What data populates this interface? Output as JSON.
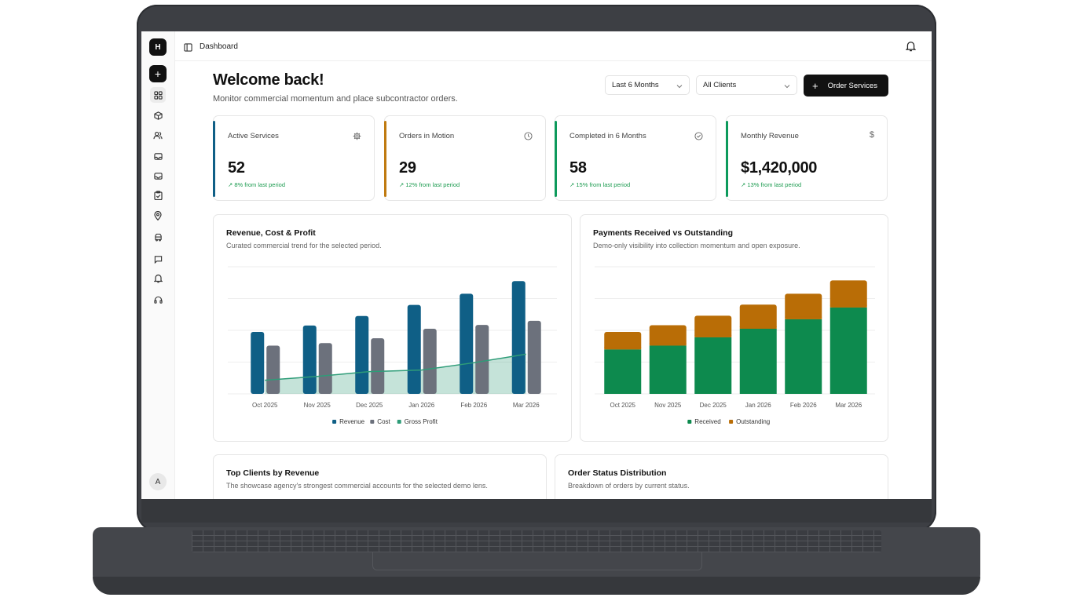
{
  "sidebar": {
    "logo": "H",
    "add": "+",
    "avatar": "A",
    "icons": [
      "grid-icon",
      "box-icon",
      "users-icon",
      "inbox-icon",
      "inbox-alt-icon",
      "clipboard-check-icon",
      "map-pin-icon",
      "truck-icon",
      "message-icon",
      "bell-icon",
      "headset-icon"
    ]
  },
  "topbar": {
    "title": "Dashboard"
  },
  "header": {
    "title": "Welcome back!",
    "subtitle": "Monitor commercial momentum and place subcontractor orders.",
    "period_select": "Last 6 Months",
    "client_select": "All Clients",
    "order_button": "Order Services"
  },
  "kpis": [
    {
      "label": "Active Services",
      "value": "52",
      "trend": "8% from last period",
      "color": "#0f5f86",
      "icon": "gear-icon"
    },
    {
      "label": "Orders in Motion",
      "value": "29",
      "trend": "12% from last period",
      "color": "#c07a10",
      "icon": "clock-icon"
    },
    {
      "label": "Completed in 6 Months",
      "value": "58",
      "trend": "15% from last period",
      "color": "#0d9a5c",
      "icon": "check-circle-icon"
    },
    {
      "label": "Monthly Revenue",
      "value": "$1,420,000",
      "trend": "13% from last period",
      "color": "#0d9a5c",
      "icon": "dollar-icon"
    }
  ],
  "revenue_card": {
    "title": "Revenue, Cost & Profit",
    "subtitle": "Curated commercial trend for the selected period."
  },
  "payments_card": {
    "title": "Payments Received vs Outstanding",
    "subtitle": "Demo-only visibility into collection momentum and open exposure."
  },
  "clients_card": {
    "title": "Top Clients by Revenue",
    "subtitle": "The showcase agency's strongest commercial accounts for the selected demo lens."
  },
  "status_card": {
    "title": "Order Status Distribution",
    "subtitle": "Breakdown of orders by current status."
  },
  "chart_data": [
    {
      "type": "bar",
      "title": "Revenue, Cost & Profit",
      "categories": [
        "Oct 2025",
        "Nov 2025",
        "Dec 2025",
        "Jan 2026",
        "Feb 2026",
        "Mar 2026"
      ],
      "ylim": [
        0,
        4
      ],
      "grid": true,
      "legend": "bottom",
      "series": [
        {
          "name": "Revenue",
          "kind": "bar",
          "color": "#0f5f86",
          "values": [
            1.95,
            2.15,
            2.45,
            2.8,
            3.15,
            3.55
          ]
        },
        {
          "name": "Cost",
          "kind": "bar",
          "color": "#6c717c",
          "values": [
            1.52,
            1.6,
            1.75,
            2.05,
            2.17,
            2.3
          ]
        },
        {
          "name": "Gross Profit",
          "kind": "area",
          "color": "#2e9c78",
          "values": [
            0.43,
            0.55,
            0.7,
            0.75,
            0.98,
            1.25
          ]
        }
      ]
    },
    {
      "type": "bar",
      "stacked": true,
      "title": "Payments Received vs Outstanding",
      "categories": [
        "Oct 2025",
        "Nov 2025",
        "Dec 2025",
        "Jan 2026",
        "Feb 2026",
        "Mar 2026"
      ],
      "ylim": [
        0,
        4
      ],
      "grid": true,
      "legend": "bottom",
      "series": [
        {
          "name": "Received",
          "color": "#0d8a4e",
          "values": [
            1.4,
            1.52,
            1.78,
            2.05,
            2.35,
            2.72
          ]
        },
        {
          "name": "Outstanding",
          "color": "#b96d06",
          "values": [
            0.55,
            0.64,
            0.68,
            0.76,
            0.8,
            0.85
          ]
        }
      ]
    }
  ]
}
